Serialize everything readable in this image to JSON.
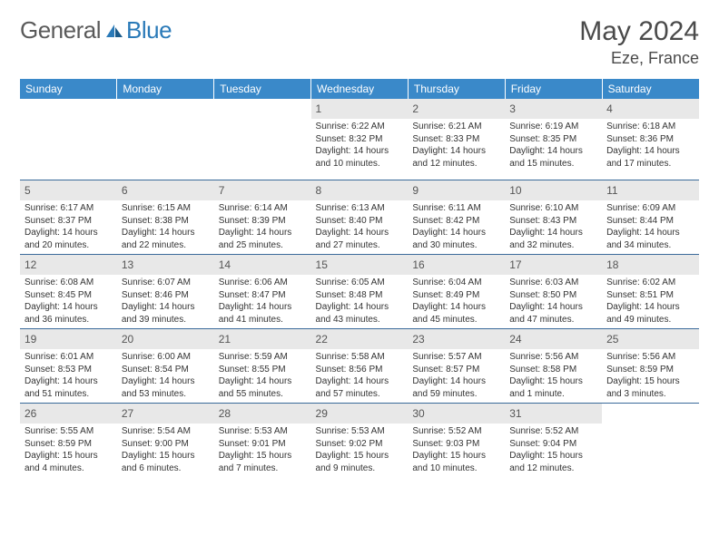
{
  "logo": {
    "text_general": "General",
    "text_blue": "Blue"
  },
  "title": "May 2024",
  "location": "Eze, France",
  "colors": {
    "header_bg": "#3a89c9",
    "header_text": "#ffffff",
    "border": "#3a6a9a",
    "daynum_bg": "#e8e8e8",
    "logo_gray": "#5a5a5a",
    "logo_blue": "#2a7ab8"
  },
  "weekdays": [
    "Sunday",
    "Monday",
    "Tuesday",
    "Wednesday",
    "Thursday",
    "Friday",
    "Saturday"
  ],
  "weeks": [
    [
      null,
      null,
      null,
      {
        "n": "1",
        "sr": "6:22 AM",
        "ss": "8:32 PM",
        "dl": "14 hours and 10 minutes."
      },
      {
        "n": "2",
        "sr": "6:21 AM",
        "ss": "8:33 PM",
        "dl": "14 hours and 12 minutes."
      },
      {
        "n": "3",
        "sr": "6:19 AM",
        "ss": "8:35 PM",
        "dl": "14 hours and 15 minutes."
      },
      {
        "n": "4",
        "sr": "6:18 AM",
        "ss": "8:36 PM",
        "dl": "14 hours and 17 minutes."
      }
    ],
    [
      {
        "n": "5",
        "sr": "6:17 AM",
        "ss": "8:37 PM",
        "dl": "14 hours and 20 minutes."
      },
      {
        "n": "6",
        "sr": "6:15 AM",
        "ss": "8:38 PM",
        "dl": "14 hours and 22 minutes."
      },
      {
        "n": "7",
        "sr": "6:14 AM",
        "ss": "8:39 PM",
        "dl": "14 hours and 25 minutes."
      },
      {
        "n": "8",
        "sr": "6:13 AM",
        "ss": "8:40 PM",
        "dl": "14 hours and 27 minutes."
      },
      {
        "n": "9",
        "sr": "6:11 AM",
        "ss": "8:42 PM",
        "dl": "14 hours and 30 minutes."
      },
      {
        "n": "10",
        "sr": "6:10 AM",
        "ss": "8:43 PM",
        "dl": "14 hours and 32 minutes."
      },
      {
        "n": "11",
        "sr": "6:09 AM",
        "ss": "8:44 PM",
        "dl": "14 hours and 34 minutes."
      }
    ],
    [
      {
        "n": "12",
        "sr": "6:08 AM",
        "ss": "8:45 PM",
        "dl": "14 hours and 36 minutes."
      },
      {
        "n": "13",
        "sr": "6:07 AM",
        "ss": "8:46 PM",
        "dl": "14 hours and 39 minutes."
      },
      {
        "n": "14",
        "sr": "6:06 AM",
        "ss": "8:47 PM",
        "dl": "14 hours and 41 minutes."
      },
      {
        "n": "15",
        "sr": "6:05 AM",
        "ss": "8:48 PM",
        "dl": "14 hours and 43 minutes."
      },
      {
        "n": "16",
        "sr": "6:04 AM",
        "ss": "8:49 PM",
        "dl": "14 hours and 45 minutes."
      },
      {
        "n": "17",
        "sr": "6:03 AM",
        "ss": "8:50 PM",
        "dl": "14 hours and 47 minutes."
      },
      {
        "n": "18",
        "sr": "6:02 AM",
        "ss": "8:51 PM",
        "dl": "14 hours and 49 minutes."
      }
    ],
    [
      {
        "n": "19",
        "sr": "6:01 AM",
        "ss": "8:53 PM",
        "dl": "14 hours and 51 minutes."
      },
      {
        "n": "20",
        "sr": "6:00 AM",
        "ss": "8:54 PM",
        "dl": "14 hours and 53 minutes."
      },
      {
        "n": "21",
        "sr": "5:59 AM",
        "ss": "8:55 PM",
        "dl": "14 hours and 55 minutes."
      },
      {
        "n": "22",
        "sr": "5:58 AM",
        "ss": "8:56 PM",
        "dl": "14 hours and 57 minutes."
      },
      {
        "n": "23",
        "sr": "5:57 AM",
        "ss": "8:57 PM",
        "dl": "14 hours and 59 minutes."
      },
      {
        "n": "24",
        "sr": "5:56 AM",
        "ss": "8:58 PM",
        "dl": "15 hours and 1 minute."
      },
      {
        "n": "25",
        "sr": "5:56 AM",
        "ss": "8:59 PM",
        "dl": "15 hours and 3 minutes."
      }
    ],
    [
      {
        "n": "26",
        "sr": "5:55 AM",
        "ss": "8:59 PM",
        "dl": "15 hours and 4 minutes."
      },
      {
        "n": "27",
        "sr": "5:54 AM",
        "ss": "9:00 PM",
        "dl": "15 hours and 6 minutes."
      },
      {
        "n": "28",
        "sr": "5:53 AM",
        "ss": "9:01 PM",
        "dl": "15 hours and 7 minutes."
      },
      {
        "n": "29",
        "sr": "5:53 AM",
        "ss": "9:02 PM",
        "dl": "15 hours and 9 minutes."
      },
      {
        "n": "30",
        "sr": "5:52 AM",
        "ss": "9:03 PM",
        "dl": "15 hours and 10 minutes."
      },
      {
        "n": "31",
        "sr": "5:52 AM",
        "ss": "9:04 PM",
        "dl": "15 hours and 12 minutes."
      },
      null
    ]
  ],
  "labels": {
    "sunrise": "Sunrise: ",
    "sunset": "Sunset: ",
    "daylight": "Daylight: "
  }
}
